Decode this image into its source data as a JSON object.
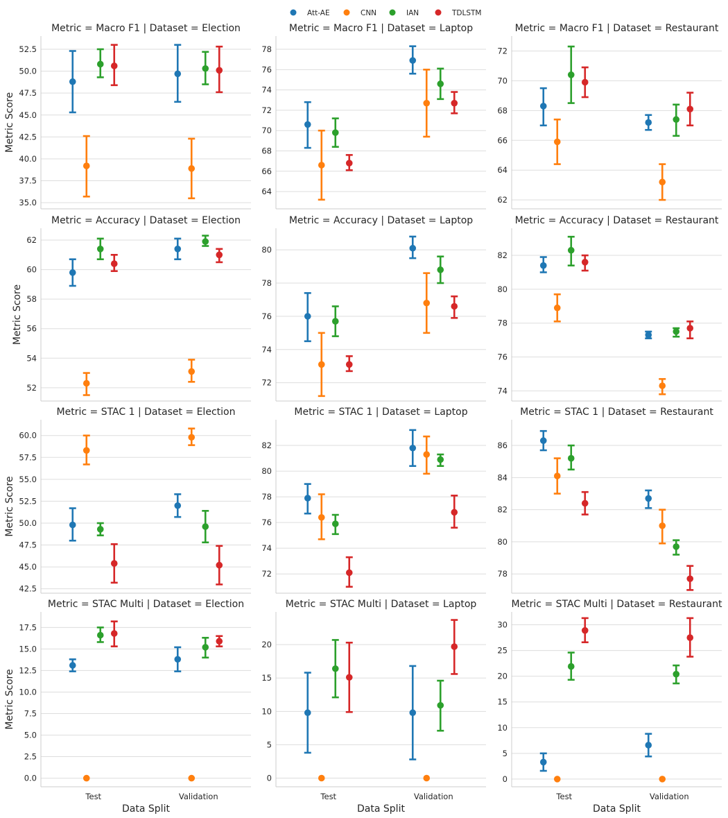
{
  "legend": [
    {
      "name": "Att-AE",
      "color": "#1f77b4"
    },
    {
      "name": "CNN",
      "color": "#ff7f0e"
    },
    {
      "name": "IAN",
      "color": "#2ca02c"
    },
    {
      "name": "TDLSTM",
      "color": "#d62728"
    }
  ],
  "chart_data": {
    "type": "pointplot",
    "xlabel": "Data Split",
    "ylabel": "Metric Score",
    "categories": [
      "Test",
      "Validation"
    ],
    "series_names": [
      "Att-AE",
      "CNN",
      "IAN",
      "TDLSTM"
    ],
    "panels": [
      {
        "title": "Metric = Macro F1 | Dataset = Election",
        "ylim": [
          34.3,
          54.0
        ],
        "yticks": [
          35.0,
          37.5,
          40.0,
          42.5,
          45.0,
          47.5,
          50.0,
          52.5
        ],
        "tick_labels": [
          "35.0",
          "37.5",
          "40.0",
          "42.5",
          "45.0",
          "47.5",
          "50.0",
          "52.5"
        ],
        "series": [
          {
            "name": "Att-AE",
            "values": [
              48.8,
              49.7
            ],
            "ci_low": [
              45.3,
              46.5
            ],
            "ci_high": [
              52.3,
              53.0
            ]
          },
          {
            "name": "CNN",
            "values": [
              39.2,
              38.9
            ],
            "ci_low": [
              35.7,
              35.5
            ],
            "ci_high": [
              42.6,
              42.3
            ]
          },
          {
            "name": "IAN",
            "values": [
              50.8,
              50.3
            ],
            "ci_low": [
              49.3,
              48.5
            ],
            "ci_high": [
              52.5,
              52.2
            ]
          },
          {
            "name": "TDLSTM",
            "values": [
              50.6,
              50.1
            ],
            "ci_low": [
              48.4,
              47.6
            ],
            "ci_high": [
              53.0,
              52.8
            ]
          }
        ]
      },
      {
        "title": "Metric = Macro F1 | Dataset = Laptop",
        "ylim": [
          62.3,
          79.3
        ],
        "yticks": [
          64,
          66,
          68,
          70,
          72,
          74,
          76,
          78
        ],
        "tick_labels": [
          "64",
          "66",
          "68",
          "70",
          "72",
          "74",
          "76",
          "78"
        ],
        "series": [
          {
            "name": "Att-AE",
            "values": [
              70.6,
              76.9
            ],
            "ci_low": [
              68.3,
              75.6
            ],
            "ci_high": [
              72.8,
              78.3
            ]
          },
          {
            "name": "CNN",
            "values": [
              66.6,
              72.7
            ],
            "ci_low": [
              63.2,
              69.4
            ],
            "ci_high": [
              70.0,
              76.0
            ]
          },
          {
            "name": "IAN",
            "values": [
              69.8,
              74.6
            ],
            "ci_low": [
              68.4,
              73.1
            ],
            "ci_high": [
              71.2,
              76.1
            ]
          },
          {
            "name": "TDLSTM",
            "values": [
              66.8,
              72.7
            ],
            "ci_low": [
              66.1,
              71.7
            ],
            "ci_high": [
              67.6,
              73.8
            ]
          }
        ]
      },
      {
        "title": "Metric = Macro F1 | Dataset = Restaurant",
        "ylim": [
          61.4,
          73.0
        ],
        "yticks": [
          62,
          64,
          66,
          68,
          70,
          72
        ],
        "tick_labels": [
          "62",
          "64",
          "66",
          "68",
          "70",
          "72"
        ],
        "series": [
          {
            "name": "Att-AE",
            "values": [
              68.3,
              67.2
            ],
            "ci_low": [
              67.0,
              66.7
            ],
            "ci_high": [
              69.5,
              67.7
            ]
          },
          {
            "name": "CNN",
            "values": [
              65.9,
              63.2
            ],
            "ci_low": [
              64.4,
              62.0
            ],
            "ci_high": [
              67.4,
              64.4
            ]
          },
          {
            "name": "IAN",
            "values": [
              70.4,
              67.4
            ],
            "ci_low": [
              68.5,
              66.3
            ],
            "ci_high": [
              72.3,
              68.4
            ]
          },
          {
            "name": "TDLSTM",
            "values": [
              69.9,
              68.1
            ],
            "ci_low": [
              68.9,
              67.0
            ],
            "ci_high": [
              70.9,
              69.2
            ]
          }
        ]
      },
      {
        "title": "Metric = Accuracy | Dataset = Election",
        "ylim": [
          51.1,
          62.8
        ],
        "yticks": [
          52,
          54,
          56,
          58,
          60,
          62
        ],
        "tick_labels": [
          "52",
          "54",
          "56",
          "58",
          "60",
          "62"
        ],
        "series": [
          {
            "name": "Att-AE",
            "values": [
              59.8,
              61.4
            ],
            "ci_low": [
              58.9,
              60.7
            ],
            "ci_high": [
              60.7,
              62.1
            ]
          },
          {
            "name": "CNN",
            "values": [
              52.3,
              53.1
            ],
            "ci_low": [
              51.5,
              52.4
            ],
            "ci_high": [
              53.0,
              53.9
            ]
          },
          {
            "name": "IAN",
            "values": [
              61.4,
              61.9
            ],
            "ci_low": [
              60.7,
              61.6
            ],
            "ci_high": [
              62.1,
              62.3
            ]
          },
          {
            "name": "TDLSTM",
            "values": [
              60.4,
              61.0
            ],
            "ci_low": [
              59.9,
              60.5
            ],
            "ci_high": [
              61.0,
              61.4
            ]
          }
        ]
      },
      {
        "title": "Metric = Accuracy | Dataset = Laptop",
        "ylim": [
          70.9,
          81.3
        ],
        "yticks": [
          72,
          74,
          76,
          78,
          80
        ],
        "tick_labels": [
          "72",
          "74",
          "76",
          "78",
          "80"
        ],
        "series": [
          {
            "name": "Att-AE",
            "values": [
              76.0,
              80.1
            ],
            "ci_low": [
              74.5,
              79.5
            ],
            "ci_high": [
              77.4,
              80.8
            ]
          },
          {
            "name": "CNN",
            "values": [
              73.1,
              76.8
            ],
            "ci_low": [
              71.2,
              75.0
            ],
            "ci_high": [
              75.0,
              78.6
            ]
          },
          {
            "name": "IAN",
            "values": [
              75.7,
              78.8
            ],
            "ci_low": [
              74.8,
              78.0
            ],
            "ci_high": [
              76.6,
              79.6
            ]
          },
          {
            "name": "TDLSTM",
            "values": [
              73.1,
              76.6
            ],
            "ci_low": [
              72.7,
              75.9
            ],
            "ci_high": [
              73.6,
              77.2
            ]
          }
        ]
      },
      {
        "title": "Metric = Accuracy | Dataset = Restaurant",
        "ylim": [
          73.4,
          83.6
        ],
        "yticks": [
          74,
          76,
          78,
          80,
          82
        ],
        "tick_labels": [
          "74",
          "76",
          "78",
          "80",
          "82"
        ],
        "series": [
          {
            "name": "Att-AE",
            "values": [
              81.4,
              77.3
            ],
            "ci_low": [
              81.0,
              77.1
            ],
            "ci_high": [
              81.9,
              77.5
            ]
          },
          {
            "name": "CNN",
            "values": [
              78.9,
              74.3
            ],
            "ci_low": [
              78.1,
              73.8
            ],
            "ci_high": [
              79.7,
              74.7
            ]
          },
          {
            "name": "IAN",
            "values": [
              82.3,
              77.5
            ],
            "ci_low": [
              81.4,
              77.2
            ],
            "ci_high": [
              83.1,
              77.7
            ]
          },
          {
            "name": "TDLSTM",
            "values": [
              81.6,
              77.7
            ],
            "ci_low": [
              81.1,
              77.1
            ],
            "ci_high": [
              82.0,
              78.1
            ]
          }
        ]
      },
      {
        "title": "Metric = STAC 1 | Dataset = Election",
        "ylim": [
          42.0,
          61.8
        ],
        "yticks": [
          42.5,
          45.0,
          47.5,
          50.0,
          52.5,
          55.0,
          57.5,
          60.0
        ],
        "tick_labels": [
          "42.5",
          "45.0",
          "47.5",
          "50.0",
          "52.5",
          "55.0",
          "57.5",
          "60.0"
        ],
        "series": [
          {
            "name": "Att-AE",
            "values": [
              49.8,
              52.0
            ],
            "ci_low": [
              48.0,
              50.7
            ],
            "ci_high": [
              51.7,
              53.3
            ]
          },
          {
            "name": "CNN",
            "values": [
              58.3,
              59.8
            ],
            "ci_low": [
              56.7,
              58.9
            ],
            "ci_high": [
              60.0,
              60.8
            ]
          },
          {
            "name": "IAN",
            "values": [
              49.3,
              49.6
            ],
            "ci_low": [
              48.6,
              47.8
            ],
            "ci_high": [
              50.0,
              51.4
            ]
          },
          {
            "name": "TDLSTM",
            "values": [
              45.4,
              45.2
            ],
            "ci_low": [
              43.2,
              43.0
            ],
            "ci_high": [
              47.6,
              47.4
            ]
          }
        ]
      },
      {
        "title": "Metric = STAC 1 | Dataset = Laptop",
        "ylim": [
          70.5,
          84.0
        ],
        "yticks": [
          72,
          74,
          76,
          78,
          80,
          82
        ],
        "tick_labels": [
          "72",
          "74",
          "76",
          "78",
          "80",
          "82"
        ],
        "series": [
          {
            "name": "Att-AE",
            "values": [
              77.9,
              81.8
            ],
            "ci_low": [
              76.7,
              80.4
            ],
            "ci_high": [
              79.0,
              83.2
            ]
          },
          {
            "name": "CNN",
            "values": [
              76.4,
              81.3
            ],
            "ci_low": [
              74.7,
              79.8
            ],
            "ci_high": [
              78.2,
              82.7
            ]
          },
          {
            "name": "IAN",
            "values": [
              75.9,
              80.9
            ],
            "ci_low": [
              75.1,
              80.4
            ],
            "ci_high": [
              76.6,
              81.3
            ]
          },
          {
            "name": "TDLSTM",
            "values": [
              72.1,
              76.8
            ],
            "ci_low": [
              71.0,
              75.6
            ],
            "ci_high": [
              73.3,
              78.1
            ]
          }
        ]
      },
      {
        "title": "Metric = STAC 1 | Dataset = Restaurant",
        "ylim": [
          76.8,
          87.6
        ],
        "yticks": [
          78,
          80,
          82,
          84,
          86
        ],
        "tick_labels": [
          "78",
          "80",
          "82",
          "84",
          "86"
        ],
        "series": [
          {
            "name": "Att-AE",
            "values": [
              86.3,
              82.7
            ],
            "ci_low": [
              85.7,
              82.1
            ],
            "ci_high": [
              86.9,
              83.2
            ]
          },
          {
            "name": "CNN",
            "values": [
              84.1,
              81.0
            ],
            "ci_low": [
              83.0,
              79.9
            ],
            "ci_high": [
              85.2,
              82.0
            ]
          },
          {
            "name": "IAN",
            "values": [
              85.2,
              79.7
            ],
            "ci_low": [
              84.5,
              79.2
            ],
            "ci_high": [
              86.0,
              80.1
            ]
          },
          {
            "name": "TDLSTM",
            "values": [
              82.4,
              77.7
            ],
            "ci_low": [
              81.7,
              77.0
            ],
            "ci_high": [
              83.1,
              78.5
            ]
          }
        ]
      },
      {
        "title": "Metric = STAC Multi | Dataset = Election",
        "ylim": [
          -1.0,
          19.3
        ],
        "yticks": [
          0.0,
          2.5,
          5.0,
          7.5,
          10.0,
          12.5,
          15.0,
          17.5
        ],
        "tick_labels": [
          "0.0",
          "2.5",
          "5.0",
          "7.5",
          "10.0",
          "12.5",
          "15.0",
          "17.5"
        ],
        "series": [
          {
            "name": "Att-AE",
            "values": [
              13.1,
              13.8
            ],
            "ci_low": [
              12.4,
              12.4
            ],
            "ci_high": [
              13.8,
              15.2
            ]
          },
          {
            "name": "CNN",
            "values": [
              0.0,
              0.0
            ],
            "ci_low": [
              0.0,
              0.0
            ],
            "ci_high": [
              0.0,
              0.0
            ]
          },
          {
            "name": "IAN",
            "values": [
              16.6,
              15.2
            ],
            "ci_low": [
              15.8,
              14.0
            ],
            "ci_high": [
              17.5,
              16.3
            ]
          },
          {
            "name": "TDLSTM",
            "values": [
              16.8,
              15.9
            ],
            "ci_low": [
              15.3,
              15.3
            ],
            "ci_high": [
              18.2,
              16.5
            ]
          }
        ]
      },
      {
        "title": "Metric = STAC Multi | Dataset = Laptop",
        "ylim": [
          -1.3,
          24.9
        ],
        "yticks": [
          0,
          5,
          10,
          15,
          20
        ],
        "tick_labels": [
          "0",
          "5",
          "10",
          "15",
          "20"
        ],
        "series": [
          {
            "name": "Att-AE",
            "values": [
              9.8,
              9.8
            ],
            "ci_low": [
              3.8,
              2.8
            ],
            "ci_high": [
              15.8,
              16.8
            ]
          },
          {
            "name": "CNN",
            "values": [
              0.0,
              0.0
            ],
            "ci_low": [
              0.0,
              0.0
            ],
            "ci_high": [
              0.0,
              0.0
            ]
          },
          {
            "name": "IAN",
            "values": [
              16.4,
              10.9
            ],
            "ci_low": [
              12.1,
              7.1
            ],
            "ci_high": [
              20.7,
              14.6
            ]
          },
          {
            "name": "TDLSTM",
            "values": [
              15.1,
              19.7
            ],
            "ci_low": [
              9.9,
              15.6
            ],
            "ci_high": [
              20.3,
              23.7
            ]
          }
        ]
      },
      {
        "title": "Metric = STAC Multi | Dataset = Restaurant",
        "ylim": [
          -1.5,
          32.5
        ],
        "yticks": [
          0,
          5,
          10,
          15,
          20,
          25,
          30
        ],
        "tick_labels": [
          "0",
          "5",
          "10",
          "15",
          "20",
          "25",
          "30"
        ],
        "series": [
          {
            "name": "Att-AE",
            "values": [
              3.3,
              6.6
            ],
            "ci_low": [
              1.6,
              4.4
            ],
            "ci_high": [
              5.0,
              8.8
            ]
          },
          {
            "name": "CNN",
            "values": [
              0.0,
              0.0
            ],
            "ci_low": [
              0.0,
              0.0
            ],
            "ci_high": [
              0.0,
              0.0
            ]
          },
          {
            "name": "IAN",
            "values": [
              21.9,
              20.4
            ],
            "ci_low": [
              19.3,
              18.6
            ],
            "ci_high": [
              24.6,
              22.1
            ]
          },
          {
            "name": "TDLSTM",
            "values": [
              28.9,
              27.5
            ],
            "ci_low": [
              26.6,
              23.8
            ],
            "ci_high": [
              31.3,
              31.3
            ]
          }
        ]
      }
    ]
  }
}
